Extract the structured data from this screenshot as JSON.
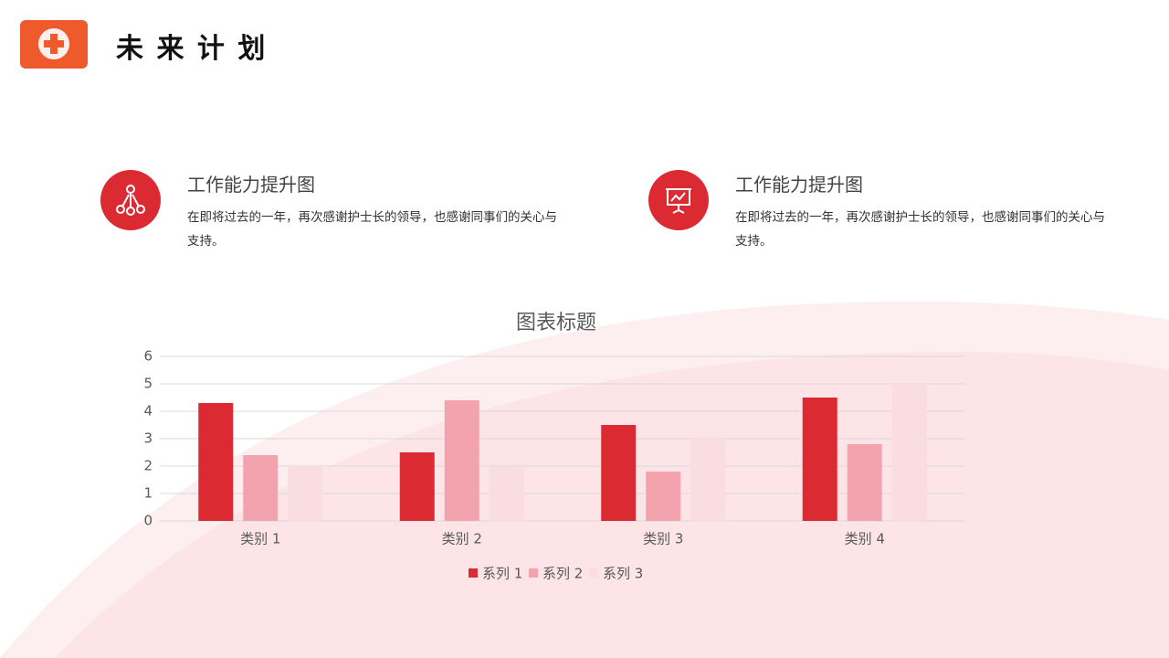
{
  "header": {
    "title": "未 来 计 划"
  },
  "features": [
    {
      "heading": "工作能力提升图",
      "text": "在即将过去的一年，再次感谢护士长的领导，也感谢同事们的关心与支持。"
    },
    {
      "heading": "工作能力提升图",
      "text": "在即将过去的一年，再次感谢护士长的领导，也感谢同事们的关心与支持。"
    }
  ],
  "chart_data": {
    "type": "bar",
    "title": "图表标题",
    "categories": [
      "类别 1",
      "类别 2",
      "类别 3",
      "类别 4"
    ],
    "series": [
      {
        "name": "系列 1",
        "color": "#dc2a32",
        "values": [
          4.3,
          2.5,
          3.5,
          4.5
        ]
      },
      {
        "name": "系列 2",
        "color": "#f2a3ad",
        "values": [
          2.4,
          4.4,
          1.8,
          2.8
        ]
      },
      {
        "name": "系列 3",
        "color": "#fadde1",
        "values": [
          2,
          2,
          3,
          5
        ]
      }
    ],
    "ylim": [
      0,
      6
    ],
    "yticks": [
      0,
      1,
      2,
      3,
      4,
      5,
      6
    ],
    "grid": true,
    "legend": "bottom"
  }
}
